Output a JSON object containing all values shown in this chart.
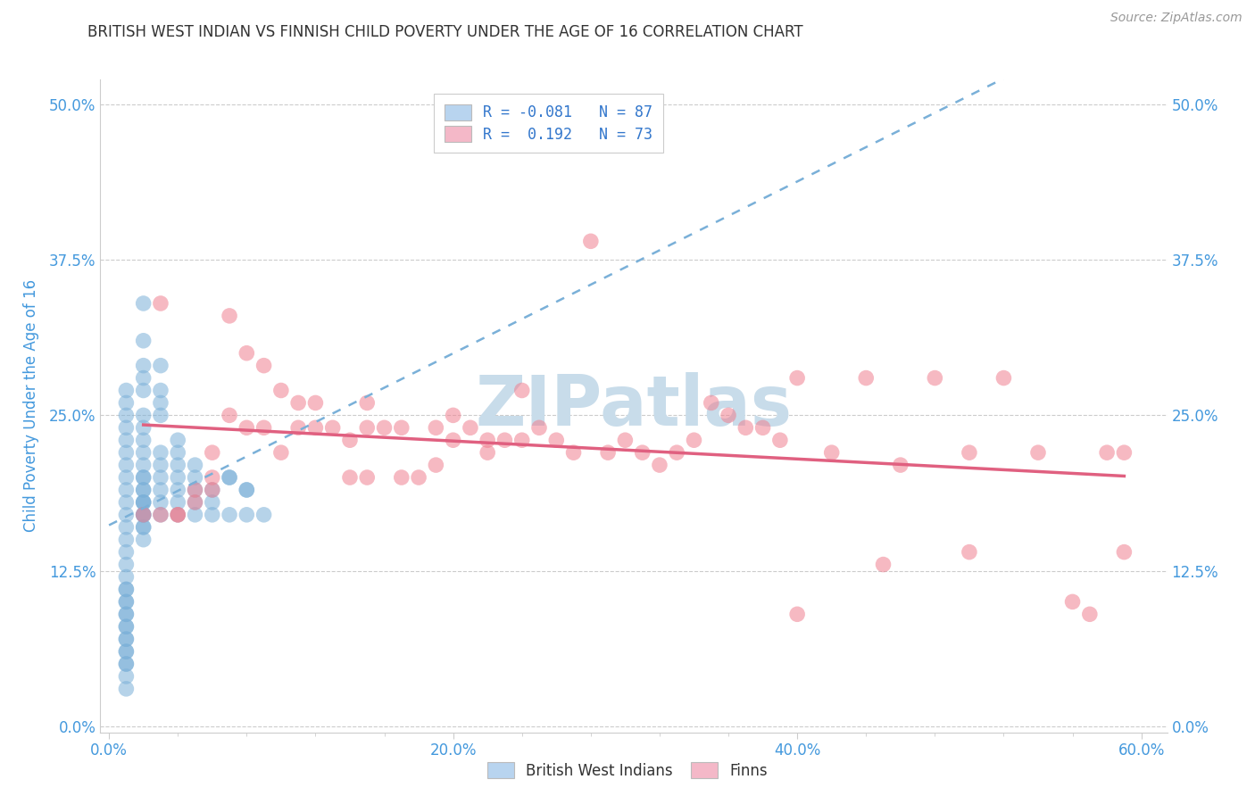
{
  "title": "BRITISH WEST INDIAN VS FINNISH CHILD POVERTY UNDER THE AGE OF 16 CORRELATION CHART",
  "source": "Source: ZipAtlas.com",
  "ylabel": "Child Poverty Under the Age of 16",
  "xlabel_ticks": [
    "0.0%",
    "",
    "",
    "",
    "",
    "20.0%",
    "",
    "",
    "",
    "",
    "40.0%",
    "",
    "",
    "",
    "",
    "60.0%"
  ],
  "xlabel_vals": [
    0.0,
    0.04,
    0.08,
    0.12,
    0.16,
    0.2,
    0.24,
    0.28,
    0.32,
    0.36,
    0.4,
    0.44,
    0.48,
    0.52,
    0.56,
    0.6
  ],
  "xlabel_major_ticks": [
    0.0,
    0.2,
    0.4,
    0.6
  ],
  "xlabel_major_labels": [
    "0.0%",
    "20.0%",
    "40.0%",
    "60.0%"
  ],
  "ylabel_ticks": [
    0.0,
    0.125,
    0.25,
    0.375,
    0.5
  ],
  "ylabel_labels": [
    "0.0%",
    "12.5%",
    "25.0%",
    "37.5%",
    "50.0%"
  ],
  "xlim": [
    -0.005,
    0.615
  ],
  "ylim": [
    -0.005,
    0.52
  ],
  "legend1_label": "R = -0.081   N = 87",
  "legend2_label": "R =  0.192   N = 73",
  "legend1_facecolor": "#b8d4ef",
  "legend2_facecolor": "#f4b8c8",
  "scatter1_color": "#7ab0d8",
  "scatter2_color": "#f08090",
  "trendline1_color": "#7ab0d8",
  "trendline2_color": "#e06080",
  "watermark_color": "#c8dcea",
  "grid_color": "#cccccc",
  "title_color": "#333333",
  "axis_label_color": "#4499dd",
  "tick_color": "#4499dd",
  "bwi_x": [
    0.01,
    0.01,
    0.01,
    0.01,
    0.01,
    0.01,
    0.01,
    0.01,
    0.01,
    0.01,
    0.01,
    0.01,
    0.01,
    0.01,
    0.01,
    0.01,
    0.01,
    0.01,
    0.01,
    0.01,
    0.02,
    0.02,
    0.02,
    0.02,
    0.02,
    0.02,
    0.02,
    0.02,
    0.02,
    0.02,
    0.02,
    0.02,
    0.02,
    0.02,
    0.02,
    0.02,
    0.02,
    0.02,
    0.02,
    0.02,
    0.03,
    0.03,
    0.03,
    0.03,
    0.03,
    0.03,
    0.03,
    0.03,
    0.03,
    0.03,
    0.04,
    0.04,
    0.04,
    0.04,
    0.04,
    0.04,
    0.04,
    0.05,
    0.05,
    0.05,
    0.05,
    0.05,
    0.06,
    0.06,
    0.06,
    0.07,
    0.07,
    0.08,
    0.08,
    0.09,
    0.01,
    0.01,
    0.01,
    0.01,
    0.01,
    0.01,
    0.01,
    0.01,
    0.01,
    0.01,
    0.01,
    0.01,
    0.02,
    0.02,
    0.02,
    0.07,
    0.08
  ],
  "bwi_y": [
    0.03,
    0.04,
    0.05,
    0.05,
    0.06,
    0.06,
    0.07,
    0.07,
    0.08,
    0.08,
    0.09,
    0.09,
    0.1,
    0.1,
    0.11,
    0.11,
    0.12,
    0.13,
    0.14,
    0.15,
    0.15,
    0.16,
    0.17,
    0.17,
    0.18,
    0.18,
    0.19,
    0.19,
    0.2,
    0.2,
    0.21,
    0.22,
    0.23,
    0.24,
    0.25,
    0.27,
    0.28,
    0.29,
    0.31,
    0.34,
    0.17,
    0.18,
    0.19,
    0.2,
    0.21,
    0.22,
    0.25,
    0.26,
    0.27,
    0.29,
    0.17,
    0.18,
    0.19,
    0.2,
    0.21,
    0.22,
    0.23,
    0.17,
    0.18,
    0.19,
    0.2,
    0.21,
    0.17,
    0.18,
    0.19,
    0.17,
    0.2,
    0.17,
    0.19,
    0.17,
    0.16,
    0.17,
    0.18,
    0.19,
    0.2,
    0.21,
    0.22,
    0.23,
    0.24,
    0.25,
    0.26,
    0.27,
    0.16,
    0.17,
    0.18,
    0.2,
    0.19
  ],
  "finn_x": [
    0.02,
    0.03,
    0.03,
    0.04,
    0.04,
    0.05,
    0.05,
    0.06,
    0.06,
    0.06,
    0.07,
    0.07,
    0.08,
    0.08,
    0.09,
    0.09,
    0.1,
    0.1,
    0.11,
    0.11,
    0.12,
    0.12,
    0.13,
    0.14,
    0.14,
    0.15,
    0.15,
    0.15,
    0.16,
    0.17,
    0.17,
    0.18,
    0.19,
    0.19,
    0.2,
    0.2,
    0.21,
    0.22,
    0.22,
    0.23,
    0.24,
    0.24,
    0.25,
    0.26,
    0.27,
    0.28,
    0.29,
    0.3,
    0.31,
    0.32,
    0.33,
    0.34,
    0.35,
    0.36,
    0.37,
    0.38,
    0.39,
    0.4,
    0.42,
    0.44,
    0.46,
    0.48,
    0.5,
    0.52,
    0.54,
    0.56,
    0.57,
    0.58,
    0.59,
    0.59,
    0.5,
    0.45,
    0.4
  ],
  "finn_y": [
    0.17,
    0.34,
    0.17,
    0.17,
    0.17,
    0.19,
    0.18,
    0.22,
    0.2,
    0.19,
    0.33,
    0.25,
    0.3,
    0.24,
    0.29,
    0.24,
    0.27,
    0.22,
    0.26,
    0.24,
    0.26,
    0.24,
    0.24,
    0.23,
    0.2,
    0.26,
    0.24,
    0.2,
    0.24,
    0.24,
    0.2,
    0.2,
    0.24,
    0.21,
    0.25,
    0.23,
    0.24,
    0.22,
    0.23,
    0.23,
    0.27,
    0.23,
    0.24,
    0.23,
    0.22,
    0.39,
    0.22,
    0.23,
    0.22,
    0.21,
    0.22,
    0.23,
    0.26,
    0.25,
    0.24,
    0.24,
    0.23,
    0.28,
    0.22,
    0.28,
    0.21,
    0.28,
    0.22,
    0.28,
    0.22,
    0.1,
    0.09,
    0.22,
    0.14,
    0.22,
    0.14,
    0.13,
    0.09
  ]
}
